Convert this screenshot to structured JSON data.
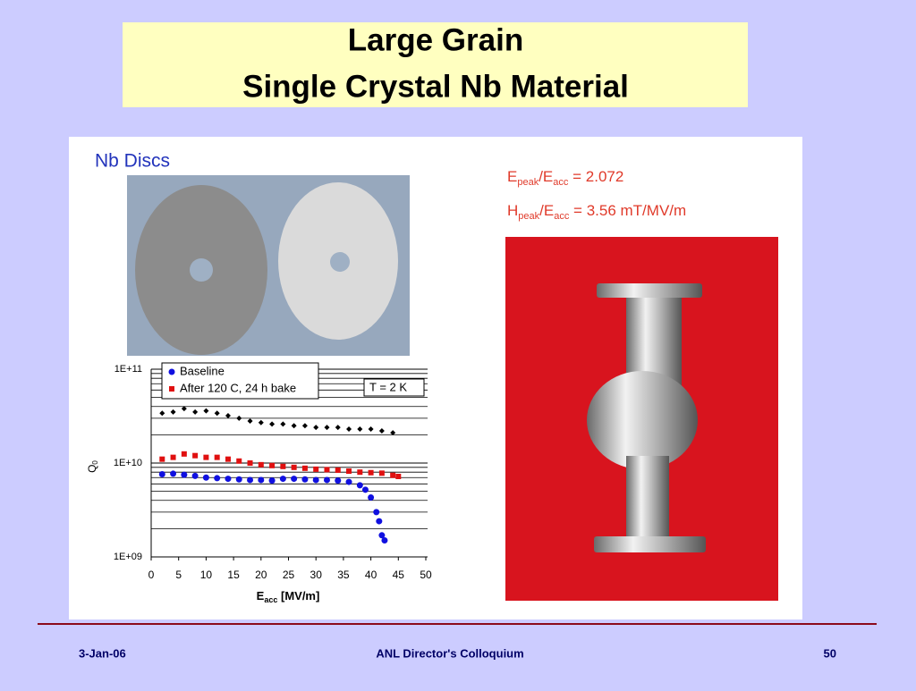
{
  "header": {
    "title_line1": "Large Grain",
    "title_line2": "Single Crystal Nb Material"
  },
  "left_panel": {
    "heading": "Nb Discs"
  },
  "right_panel": {
    "epeak_ratio": [
      "E",
      "peak",
      "/E",
      "acc",
      " = 2.072"
    ],
    "hpeak_ratio": [
      "H",
      "peak",
      "/E",
      "acc",
      " = 3.56 mT/MV/m"
    ]
  },
  "chart_data": {
    "type": "scatter",
    "ylabel": [
      "Q",
      "0"
    ],
    "xlabel": [
      "E",
      "acc",
      " [MV/m]"
    ],
    "annotation": "T = 2 K",
    "xlim": [
      0,
      50
    ],
    "xticks": [
      0,
      5,
      10,
      15,
      20,
      25,
      30,
      35,
      40,
      45,
      50
    ],
    "ylim": [
      1000000000,
      100000000000
    ],
    "log_y": true,
    "yticks": [
      {
        "value": 1000000000,
        "label": "1E+09"
      },
      {
        "value": 10000000000,
        "label": "1E+10"
      },
      {
        "value": 100000000000,
        "label": "1E+11"
      }
    ],
    "minor_yticks": [
      2000000000,
      3000000000,
      4000000000,
      5000000000,
      6000000000,
      7000000000,
      8000000000,
      9000000000,
      20000000000,
      30000000000,
      40000000000,
      50000000000,
      60000000000,
      70000000000,
      80000000000,
      90000000000
    ],
    "grid": true,
    "series": [
      {
        "name": "Baseline",
        "color": "#1010e0",
        "marker": "circle",
        "x": [
          2,
          4,
          6,
          8,
          10,
          12,
          14,
          16,
          18,
          20,
          22,
          24,
          26,
          28,
          30,
          32,
          34,
          36,
          38,
          39,
          40,
          41,
          41.5,
          42,
          42.5
        ],
        "values": [
          7600000000,
          7700000000,
          7500000000,
          7300000000,
          7000000000,
          6900000000,
          6800000000,
          6700000000,
          6600000000,
          6600000000,
          6500000000,
          6800000000,
          6800000000,
          6700000000,
          6600000000,
          6600000000,
          6500000000,
          6300000000,
          5800000000,
          5200000000,
          4300000000,
          3000000000,
          2400000000,
          1700000000,
          1500000000
        ]
      },
      {
        "name": "After 120 C, 24 h bake",
        "color": "#e01010",
        "marker": "square",
        "x": [
          2,
          4,
          6,
          8,
          10,
          12,
          14,
          16,
          18,
          20,
          22,
          24,
          26,
          28,
          30,
          32,
          34,
          36,
          38,
          40,
          42,
          44,
          45
        ],
        "values": [
          11000000000,
          11500000000,
          12500000000,
          12000000000,
          11500000000,
          11500000000,
          11000000000,
          10500000000,
          10000000000,
          9600000000,
          9400000000,
          9200000000,
          9000000000,
          8800000000,
          8600000000,
          8500000000,
          8400000000,
          8200000000,
          8000000000,
          7900000000,
          7800000000,
          7400000000,
          7200000000
        ]
      },
      {
        "color": "#000000",
        "marker": "diamond",
        "x": [
          2,
          4,
          6,
          8,
          10,
          12,
          14,
          16,
          18,
          20,
          22,
          24,
          26,
          28,
          30,
          32,
          34,
          36,
          38,
          40,
          42,
          44
        ],
        "values": [
          34000000000,
          35000000000,
          38000000000,
          35000000000,
          36000000000,
          34000000000,
          32000000000,
          30000000000,
          28000000000,
          27000000000,
          26000000000,
          26000000000,
          25000000000,
          25000000000,
          24000000000,
          24000000000,
          24000000000,
          23000000000,
          23000000000,
          23000000000,
          22000000000,
          21000000000
        ]
      }
    ]
  },
  "footer": {
    "date": "3-Jan-06",
    "event": "ANL Director's Colloquium",
    "page": "50"
  }
}
